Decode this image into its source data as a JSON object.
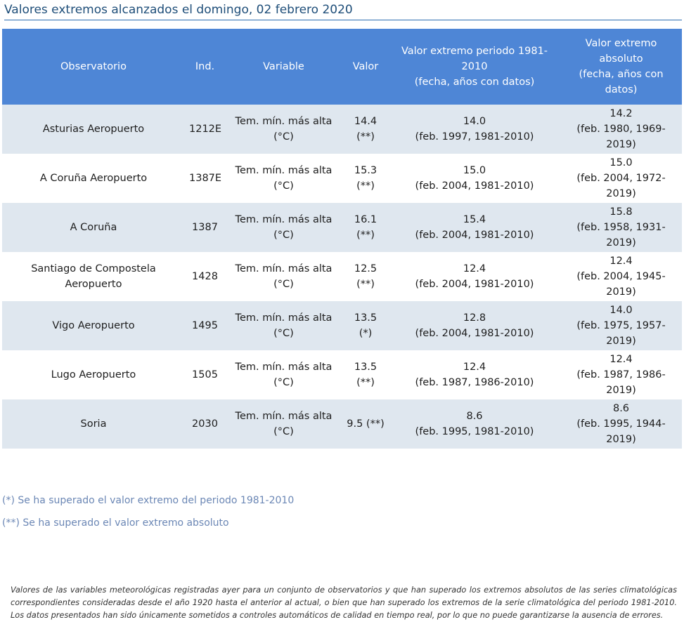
{
  "page_title": "Valores extremos alcanzados el domingo, 02 febrero 2020",
  "table": {
    "headers": {
      "observatorio": "Observatorio",
      "ind": "Ind.",
      "variable": "Variable",
      "valor": "Valor",
      "periodo": "Valor extremo periodo 1981-2010\n(fecha, años con datos)",
      "absoluto": "Valor extremo absoluto\n(fecha, años con datos)"
    },
    "rows": [
      {
        "observatorio": "Asturias Aeropuerto",
        "ind": "1212E",
        "variable": "Tem. mín. más alta (°C)",
        "valor": "14.4 (**)",
        "periodo_value": "14.0",
        "periodo_info": "(feb. 1997, 1981-2010)",
        "absoluto_value": "14.2",
        "absoluto_info": "(feb. 1980, 1969-2019)"
      },
      {
        "observatorio": "A Coruña Aeropuerto",
        "ind": "1387E",
        "variable": "Tem. mín. más alta (°C)",
        "valor": "15.3 (**)",
        "periodo_value": "15.0",
        "periodo_info": "(feb. 2004, 1981-2010)",
        "absoluto_value": "15.0",
        "absoluto_info": "(feb. 2004, 1972-2019)"
      },
      {
        "observatorio": "A Coruña",
        "ind": "1387",
        "variable": "Tem. mín. más alta (°C)",
        "valor": "16.1 (**)",
        "periodo_value": "15.4",
        "periodo_info": "(feb. 2004, 1981-2010)",
        "absoluto_value": "15.8",
        "absoluto_info": "(feb. 1958, 1931-2019)"
      },
      {
        "observatorio": "Santiago de Compostela Aeropuerto",
        "ind": "1428",
        "variable": "Tem. mín. más alta (°C)",
        "valor": "12.5 (**)",
        "periodo_value": "12.4",
        "periodo_info": "(feb. 2004, 1981-2010)",
        "absoluto_value": "12.4",
        "absoluto_info": "(feb. 2004, 1945-2019)"
      },
      {
        "observatorio": "Vigo Aeropuerto",
        "ind": "1495",
        "variable": "Tem. mín. más alta (°C)",
        "valor": "13.5 (*)",
        "periodo_value": "12.8",
        "periodo_info": "(feb. 2004, 1981-2010)",
        "absoluto_value": "14.0",
        "absoluto_info": "(feb. 1975, 1957-2019)"
      },
      {
        "observatorio": "Lugo Aeropuerto",
        "ind": "1505",
        "variable": "Tem. mín. más alta (°C)",
        "valor": "13.5 (**)",
        "periodo_value": "12.4",
        "periodo_info": "(feb. 1987, 1986-2010)",
        "absoluto_value": "12.4",
        "absoluto_info": "(feb. 1987, 1986-2019)"
      },
      {
        "observatorio": "Soria",
        "ind": "2030",
        "variable": "Tem. mín. más alta (°C)",
        "valor": "9.5 (**)",
        "periodo_value": "8.6",
        "periodo_info": "(feb. 1995, 1981-2010)",
        "absoluto_value": "8.6",
        "absoluto_info": "(feb. 1995, 1944-2019)"
      }
    ]
  },
  "notes": {
    "note_1": "(*) Se ha superado el valor extremo del periodo 1981-2010",
    "note_2": "(**) Se ha superado el valor extremo absoluto"
  },
  "footer": {
    "line_1": "Valores de las variables meteorológicas registradas ayer para un conjunto de observatorios y que han superado los extremos absolutos de las series climatológicas",
    "line_2": "correspondientes consideradas desde el año 1920 hasta el anterior al actual, o bien que han superado los extremos de la serie climatológica del periodo 1981-2010.",
    "line_3": "Los datos presentados han sido únicamente sometidos a controles automáticos de calidad en tiempo real, por lo que no puede garantizarse la ausencia de errores."
  },
  "colors": {
    "header_bg": "#4e86d6",
    "row_alt_bg": "#dfe7ef",
    "title_color": "#1d4d78",
    "note_color": "#6b87b5"
  }
}
